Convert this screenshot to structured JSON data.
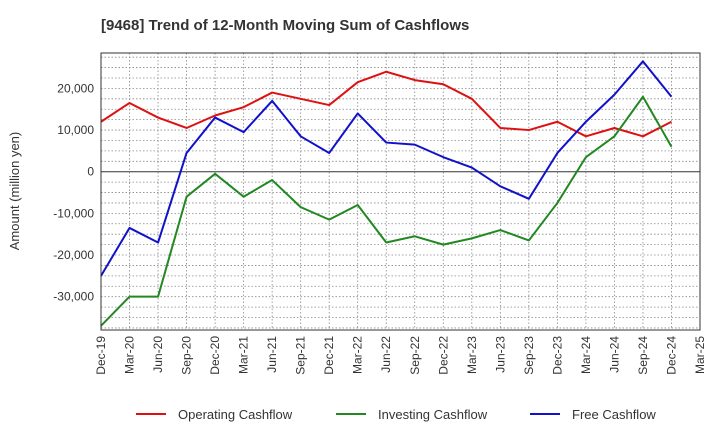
{
  "chart_data": {
    "type": "line",
    "title": "[9468]  Trend of 12-Month Moving Sum of Cashflows",
    "ylabel": "Amount (million yen)",
    "xlabel": "",
    "ylim": [
      -38000,
      28500
    ],
    "yticks": [
      -30000,
      -20000,
      -10000,
      0,
      10000,
      20000
    ],
    "ytick_labels": [
      "-30,000",
      "-20,000",
      "-10,000",
      "0",
      "10,000",
      "20,000"
    ],
    "categories": [
      "Dec-19",
      "Mar-20",
      "Jun-20",
      "Sep-20",
      "Dec-20",
      "Mar-21",
      "Jun-21",
      "Sep-21",
      "Dec-21",
      "Mar-22",
      "Jun-22",
      "Sep-22",
      "Dec-22",
      "Mar-23",
      "Jun-23",
      "Sep-23",
      "Dec-23",
      "Mar-24",
      "Jun-24",
      "Sep-24",
      "Dec-24",
      "Mar-25"
    ],
    "grid": true,
    "legend_position": "bottom",
    "series": [
      {
        "name": "Operating Cashflow",
        "color": "#dd1111",
        "values": [
          12000,
          16500,
          13000,
          10500,
          13500,
          15500,
          19000,
          17500,
          16000,
          21500,
          24000,
          22000,
          21000,
          17500,
          10500,
          10000,
          12000,
          8500,
          10500,
          8500,
          12000,
          null
        ]
      },
      {
        "name": "Investing Cashflow",
        "color": "#228822",
        "values": [
          -37000,
          -30000,
          -30000,
          -6000,
          -500,
          -6000,
          -2000,
          -8500,
          -11500,
          -8000,
          -17000,
          -15500,
          -17500,
          -16000,
          -14000,
          -16500,
          -7500,
          3500,
          8500,
          18000,
          6000,
          null
        ]
      },
      {
        "name": "Free Cashflow",
        "color": "#1111cc",
        "values": [
          -25000,
          -13500,
          -17000,
          4500,
          13000,
          9500,
          17000,
          8500,
          4500,
          14000,
          7000,
          6500,
          3500,
          1000,
          -3500,
          -6500,
          4500,
          12000,
          18500,
          26500,
          18000,
          null
        ]
      }
    ]
  }
}
